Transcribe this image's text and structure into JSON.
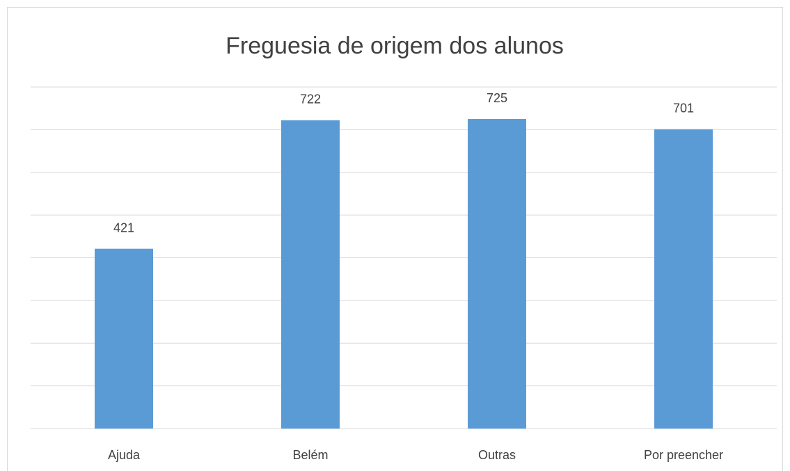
{
  "chart_data": {
    "type": "bar",
    "title": "Freguesia de origem dos alunos",
    "categories": [
      "Ajuda",
      "Belém",
      "Outras",
      "Por preencher"
    ],
    "values": [
      421,
      722,
      725,
      701
    ],
    "color": "#5b9bd5",
    "ylim": [
      0,
      800
    ],
    "yticks": [
      0,
      100,
      200,
      300,
      400,
      500,
      600,
      700,
      800
    ],
    "grid": true
  }
}
